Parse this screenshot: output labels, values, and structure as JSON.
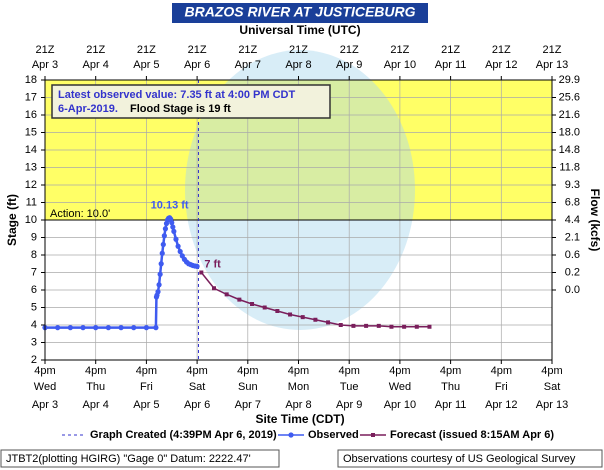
{
  "chart_data": {
    "type": "hydrograph",
    "title": "BRAZOS RIVER AT JUSTICEBURG",
    "top_axis_label": "Universal Time (UTC)",
    "x_label": "Site Time (CDT)",
    "y_label": "Stage (ft)",
    "y2_label": "Flow (kcfs)",
    "xlim": [
      "2019-04-03T16:00",
      "2019-04-13T16:00"
    ],
    "ylim": [
      2,
      18
    ],
    "yticks": [
      2,
      3,
      4,
      5,
      6,
      7,
      8,
      9,
      10,
      11,
      12,
      13,
      14,
      15,
      16,
      17,
      18
    ],
    "grid": true,
    "xticks": [
      {
        "value": "2019-04-03T16:00",
        "time": "4pm",
        "weekday": "Wed",
        "date": "Apr 3"
      },
      {
        "value": "2019-04-04T16:00",
        "time": "4pm",
        "weekday": "Thu",
        "date": "Apr 4"
      },
      {
        "value": "2019-04-05T16:00",
        "time": "4pm",
        "weekday": "Fri",
        "date": "Apr 5"
      },
      {
        "value": "2019-04-06T16:00",
        "time": "4pm",
        "weekday": "Sat",
        "date": "Apr 6"
      },
      {
        "value": "2019-04-07T16:00",
        "time": "4pm",
        "weekday": "Sun",
        "date": "Apr 7"
      },
      {
        "value": "2019-04-08T16:00",
        "time": "4pm",
        "weekday": "Mon",
        "date": "Apr 8"
      },
      {
        "value": "2019-04-09T16:00",
        "time": "4pm",
        "weekday": "Tue",
        "date": "Apr 9"
      },
      {
        "value": "2019-04-10T16:00",
        "time": "4pm",
        "weekday": "Wed",
        "date": "Apr 10"
      },
      {
        "value": "2019-04-11T16:00",
        "time": "4pm",
        "weekday": "Thu",
        "date": "Apr 11"
      },
      {
        "value": "2019-04-12T16:00",
        "time": "4pm",
        "weekday": "Fri",
        "date": "Apr 12"
      },
      {
        "value": "2019-04-13T16:00",
        "time": "4pm",
        "weekday": "Sat",
        "date": "Apr 13"
      }
    ],
    "x2ticks": [
      {
        "value": "2019-04-03T16:00",
        "time": "21Z",
        "date": "Apr 3"
      },
      {
        "value": "2019-04-04T16:00",
        "time": "21Z",
        "date": "Apr 4"
      },
      {
        "value": "2019-04-05T16:00",
        "time": "21Z",
        "date": "Apr 5"
      },
      {
        "value": "2019-04-06T16:00",
        "time": "21Z",
        "date": "Apr 6"
      },
      {
        "value": "2019-04-07T16:00",
        "time": "21Z",
        "date": "Apr 7"
      },
      {
        "value": "2019-04-08T16:00",
        "time": "21Z",
        "date": "Apr 8"
      },
      {
        "value": "2019-04-09T16:00",
        "time": "21Z",
        "date": "Apr 9"
      },
      {
        "value": "2019-04-10T16:00",
        "time": "21Z",
        "date": "Apr 10"
      },
      {
        "value": "2019-04-11T16:00",
        "time": "21Z",
        "date": "Apr 11"
      },
      {
        "value": "2019-04-12T16:00",
        "time": "21Z",
        "date": "Apr 12"
      },
      {
        "value": "2019-04-13T16:00",
        "time": "21Z",
        "date": "Apr 13"
      }
    ],
    "flow_ticks": [
      {
        "stage": 18,
        "value": 29.9
      },
      {
        "stage": 17,
        "value": 25.6
      },
      {
        "stage": 16,
        "value": 21.6
      },
      {
        "stage": 15,
        "value": 18,
        "label": "18.0"
      },
      {
        "stage": 14,
        "value": 14.8
      },
      {
        "stage": 13,
        "value": 11.8
      },
      {
        "stage": 12,
        "value": 9.3
      },
      {
        "stage": 11,
        "value": 6.8
      },
      {
        "stage": 10,
        "value": 4.4
      },
      {
        "stage": 9,
        "value": 2.1
      },
      {
        "stage": 8,
        "value": 0.6
      },
      {
        "stage": 7,
        "value": 0.2
      },
      {
        "stage": 6,
        "value": 0,
        "label": "0.0"
      }
    ],
    "action_stage": 10,
    "action_label": "Action: 10.0'",
    "action_color": "#ffff66",
    "annotation": {
      "line1": "Latest observed value: 7.35 ft at 4:00 PM CDT",
      "line2a": "6-Apr-2019.",
      "line2b": "Flood Stage is 19 ft"
    },
    "graph_created": {
      "x": "2019-04-06T16:39",
      "label": "Graph Created (4:39PM Apr 6, 2019)",
      "color": "#3333cc"
    },
    "series": [
      {
        "name": "Observed",
        "color": "#3f5bf0",
        "x": [
          "2019-04-03T16:00",
          "2019-04-03T22:00",
          "2019-04-04T04:00",
          "2019-04-04T10:00",
          "2019-04-04T16:00",
          "2019-04-04T22:00",
          "2019-04-05T04:00",
          "2019-04-05T10:00",
          "2019-04-05T16:00",
          "2019-04-05T20:30",
          "2019-04-05T20:45",
          "2019-04-05T21:00",
          "2019-04-05T21:30",
          "2019-04-05T22:00",
          "2019-04-05T22:30",
          "2019-04-05T23:00",
          "2019-04-05T23:30",
          "2019-04-06T00:00",
          "2019-04-06T00:30",
          "2019-04-06T01:00",
          "2019-04-06T01:30",
          "2019-04-06T02:00",
          "2019-04-06T02:30",
          "2019-04-06T03:00",
          "2019-04-06T03:30",
          "2019-04-06T04:00",
          "2019-04-06T04:30",
          "2019-04-06T05:00",
          "2019-04-06T06:00",
          "2019-04-06T07:00",
          "2019-04-06T08:00",
          "2019-04-06T09:00",
          "2019-04-06T10:00",
          "2019-04-06T11:00",
          "2019-04-06T12:00",
          "2019-04-06T13:00",
          "2019-04-06T14:00",
          "2019-04-06T15:00",
          "2019-04-06T16:00"
        ],
        "values": [
          3.85,
          3.85,
          3.85,
          3.85,
          3.85,
          3.85,
          3.85,
          3.85,
          3.85,
          3.85,
          5.6,
          5.7,
          5.9,
          6.3,
          6.9,
          7.5,
          8.1,
          8.6,
          9.1,
          9.5,
          9.8,
          10.0,
          10.1,
          10.13,
          10.05,
          9.85,
          9.6,
          9.35,
          8.9,
          8.5,
          8.2,
          7.95,
          7.75,
          7.6,
          7.5,
          7.45,
          7.4,
          7.37,
          7.35
        ],
        "value_labels": [
          null,
          null,
          null,
          null,
          null,
          null,
          null,
          null,
          null,
          null,
          null,
          null,
          null,
          null,
          null,
          null,
          null,
          null,
          null,
          null,
          null,
          null,
          null,
          "10.13 ft",
          null,
          null,
          null,
          null,
          null,
          null,
          null,
          null,
          null,
          null,
          null,
          null,
          null,
          null,
          null
        ]
      },
      {
        "name": "Forecast (issued 8:15AM Apr 6)",
        "color": "#7a1f5c",
        "x": [
          "2019-04-06T18:00",
          "2019-04-07T00:00",
          "2019-04-07T06:00",
          "2019-04-07T12:00",
          "2019-04-07T18:00",
          "2019-04-08T00:00",
          "2019-04-08T06:00",
          "2019-04-08T12:00",
          "2019-04-08T18:00",
          "2019-04-09T00:00",
          "2019-04-09T06:00",
          "2019-04-09T12:00",
          "2019-04-09T18:00",
          "2019-04-10T00:00",
          "2019-04-10T06:00",
          "2019-04-10T12:00",
          "2019-04-10T18:00",
          "2019-04-11T00:00",
          "2019-04-11T06:00"
        ],
        "values": [
          7.0,
          6.1,
          5.75,
          5.45,
          5.2,
          5.0,
          4.8,
          4.6,
          4.45,
          4.3,
          4.15,
          4.0,
          3.95,
          3.95,
          3.95,
          3.9,
          3.9,
          3.9,
          3.9
        ],
        "value_labels": [
          "7 ft",
          null,
          null,
          null,
          null,
          null,
          null,
          null,
          null,
          null,
          null,
          null,
          null,
          null,
          null,
          null,
          null,
          null,
          null
        ]
      }
    ],
    "footer_left": "JTBT2(plotting HGIRG) \"Gage 0\" Datum: 2222.47'",
    "footer_right": "Observations courtesy of US Geological Survey"
  }
}
